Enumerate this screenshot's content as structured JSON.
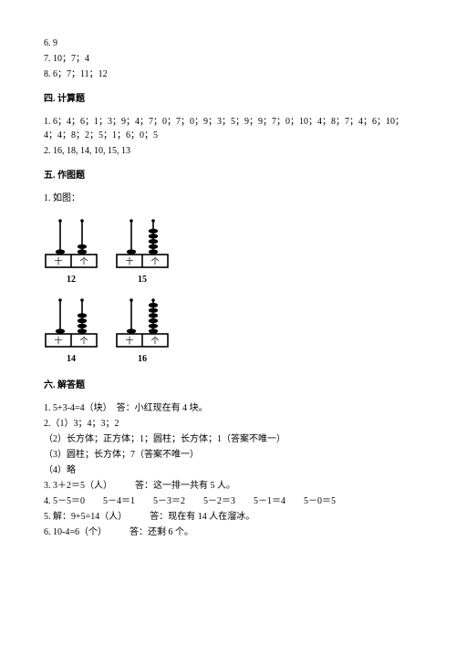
{
  "top_answers": [
    "6. 9",
    "7. 10；7；4",
    "8. 6；7；11；12"
  ],
  "section4": {
    "title": "四. 计算题",
    "items": [
      "1. 6；4；6；1；3；9；4；7；0；7；0；9；3；5；9；9；7；0；10；4；8；7；4；6；10；4；4；8；2；5；1；6；0；5",
      "2. 16, 18, 14, 10, 15, 13"
    ]
  },
  "section5": {
    "title": "五. 作图题",
    "item": "1. 如图：",
    "abacus": [
      {
        "tens": 1,
        "ones": 2,
        "label": "12"
      },
      {
        "tens": 1,
        "ones": 5,
        "label": "15"
      },
      {
        "tens": 1,
        "ones": 4,
        "label": "14"
      },
      {
        "tens": 1,
        "ones": 6,
        "label": "16"
      }
    ],
    "box_labels": {
      "left": "十",
      "right": "个"
    },
    "colors": {
      "stroke": "#000000",
      "fill": "#ffffff"
    }
  },
  "section6": {
    "title": "六. 解答题",
    "items": [
      "1. 5+3-4=4（块）　答：小红现在有 4 块。",
      "2.（1）3；4；3；2",
      "（2）长方体；正方体；1；圆柱；长方体；1（答案不唯一）",
      "（3）圆柱；长方体；7（答案不唯一）",
      "（4）略",
      "3. 3＋2＝5（人）　　　答：这一排一共有 5 人。",
      "4. 5－5＝0　　5－4＝1　　5－3＝2　　5－2＝3　　5－1＝4　　5－0＝5",
      "5. 解：9+5=14（人）　　　答：现在有 14 人在溜冰。",
      "6. 10-4=6（个）　　　答：还剩 6 个。"
    ]
  }
}
